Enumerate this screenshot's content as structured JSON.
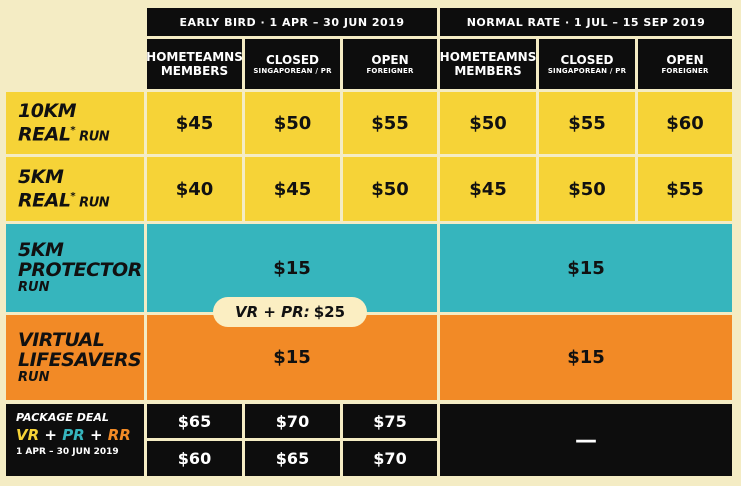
{
  "periods": {
    "early": "EARLY BIRD  ·  1 APR – 30 JUN 2019",
    "normal": "NORMAL RATE  ·  1 JUL – 15 SEP 2019"
  },
  "columns": [
    {
      "main": "HOMETEAMNS\nMEMBERS",
      "sub": ""
    },
    {
      "main": "CLOSED",
      "sub": "SINGAPOREAN / PR"
    },
    {
      "main": "OPEN",
      "sub": "FOREIGNER"
    },
    {
      "main": "HOMETEAMNS\nMEMBERS",
      "sub": ""
    },
    {
      "main": "CLOSED",
      "sub": "SINGAPOREAN / PR"
    },
    {
      "main": "OPEN",
      "sub": "FOREIGNER"
    }
  ],
  "rows": {
    "real10": {
      "line1": "10KM",
      "line2a": "REAL",
      "line2mark": "*",
      "line2b": " RUN",
      "prices": [
        "$45",
        "$50",
        "$55",
        "$50",
        "$55",
        "$60"
      ]
    },
    "real5": {
      "line1": "5KM",
      "line2a": "REAL",
      "line2mark": "*",
      "line2b": " RUN",
      "prices": [
        "$40",
        "$45",
        "$50",
        "$45",
        "$50",
        "$55"
      ]
    },
    "protector": {
      "line1": "5KM",
      "line2": "PROTECTOR",
      "line3": "RUN",
      "early_price": "$15",
      "normal_price": "$15"
    },
    "lifesavers": {
      "line1": "VIRTUAL",
      "line2": "LIFESAVERS",
      "line3": "RUN",
      "early_price": "$15",
      "normal_price": "$15"
    }
  },
  "combo": {
    "label": "VR + PR:",
    "price": "$25"
  },
  "package": {
    "title": "PACKAGE DEAL",
    "vr": "VR",
    "plus1": " + ",
    "pr": "PR",
    "plus2": " + ",
    "rr": "RR",
    "dates": "1 APR – 30 JUN 2019",
    "row1": [
      "$65",
      "$70",
      "$75"
    ],
    "row2": [
      "$60",
      "$65",
      "$70"
    ],
    "normal": "—"
  },
  "colors": {
    "yellow": "#f6d337",
    "teal": "#36b5bd",
    "orange": "#f28a26",
    "black": "#0d0d0d",
    "package_vr": "#f6d337",
    "package_pr": "#36b5bd",
    "package_rr": "#f28a26"
  }
}
